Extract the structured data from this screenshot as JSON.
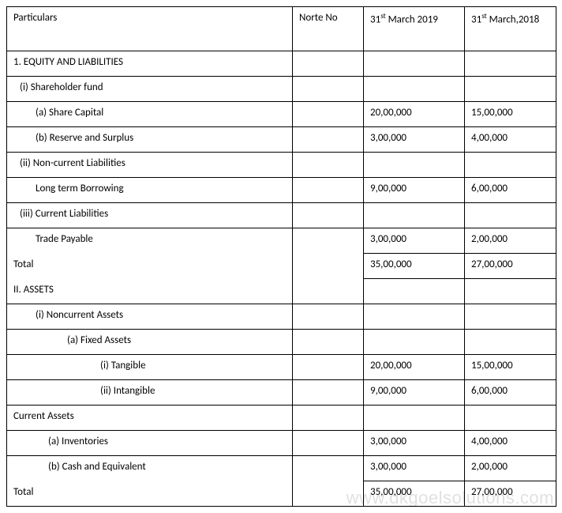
{
  "columns": {
    "particulars": "Particulars",
    "note_no": "Norte No",
    "col_2019_pre": "31",
    "col_2019_sup": "st",
    "col_2019_post": " March 2019",
    "col_2018_pre": "31",
    "col_2018_sup": "st",
    "col_2018_post": " March,2018"
  },
  "rows": {
    "r1": {
      "label": "1. EQUITY AND LIABILITIES",
      "v2019": "",
      "v2018": ""
    },
    "r2": {
      "label": "(i)   Shareholder fund",
      "v2019": "",
      "v2018": ""
    },
    "r3": {
      "label": "(a)   Share Capital",
      "v2019": "20,00,000",
      "v2018": "15,00,000"
    },
    "r4": {
      "label": "(b)   Reserve and Surplus",
      "v2019": "3,00,000",
      "v2018": "4,00,000"
    },
    "r5": {
      "label": "(ii)   Non-current Liabilities",
      "v2019": "",
      "v2018": ""
    },
    "r6": {
      "label": "Long term Borrowing",
      "v2019": "9,00,000",
      "v2018": "6,00,000"
    },
    "r7": {
      "label": "(iii)   Current Liabilities",
      "v2019": "",
      "v2018": ""
    },
    "r8": {
      "label": "Trade Payable",
      "v2019": "3,00,000",
      "v2018": "2,00,000"
    },
    "r9": {
      "label": " Total",
      "v2019": "35,00,000",
      "v2018": "27,00,000"
    },
    "r10": {
      "label": "II.  ASSETS",
      "v2019": "",
      "v2018": ""
    },
    "r11": {
      "label": "(i)   Noncurrent Assets",
      "v2019": "",
      "v2018": ""
    },
    "r12": {
      "label": "(a)     Fixed Assets",
      "v2019": "",
      "v2018": ""
    },
    "r13": {
      "label": "(i)   Tangible",
      "v2019": "20,00,000",
      "v2018": "15,00,000"
    },
    "r14": {
      "label": "(ii)   Intangible",
      "v2019": "9,00,000",
      "v2018": "6,00,000"
    },
    "r15": {
      "label": "Current Assets",
      "v2019": "",
      "v2018": ""
    },
    "r16": {
      "label": "(a)   Inventories",
      "v2019": "3,00,000",
      "v2018": "4,00,000"
    },
    "r17": {
      "label": "(b)   Cash and Equivalent",
      "v2019": "3,00,000",
      "v2018": "2,00,000"
    },
    "r18": {
      "label": "Total",
      "v2019": "35,00,000",
      "v2018": "27,00,000"
    }
  },
  "watermark": "www.dkgoelsolutions.com"
}
